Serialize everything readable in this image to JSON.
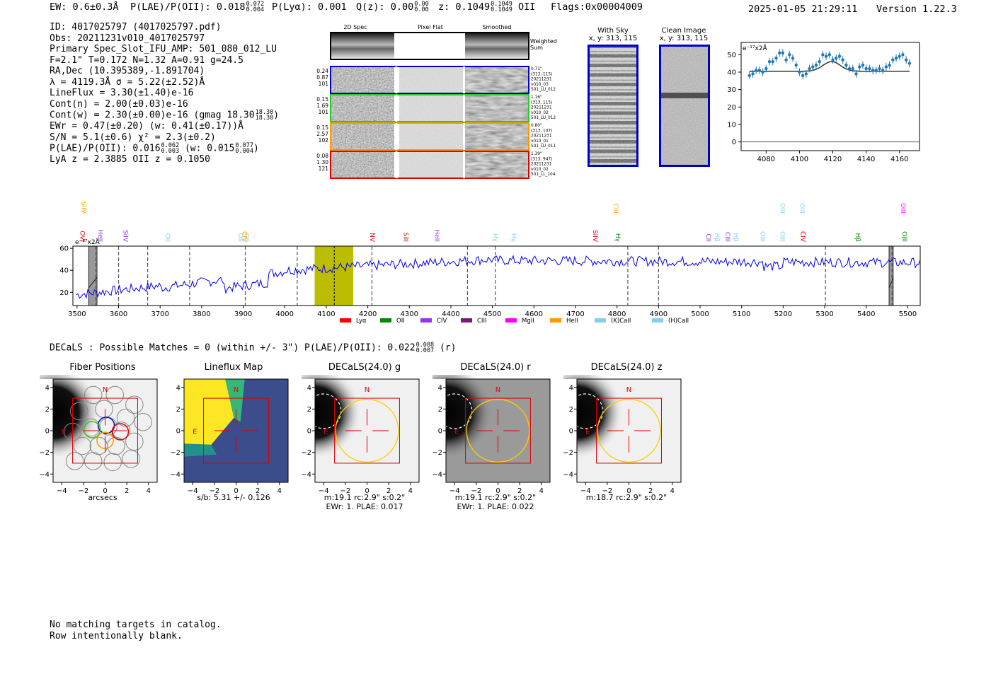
{
  "header": {
    "ew": "EW: 0.6±0.3Å",
    "plae_label": "P(LAE)/P(OII): 0.018",
    "plae_hi": "0.072",
    "plae_lo": "0.004",
    "plya": "P(Lyα): 0.001",
    "qz_label": "Q(z): 0.00",
    "qz_hi": "0.00",
    "qz_lo": "0.00",
    "z_label": "z: 0.1049",
    "z_hi": "0.1049",
    "z_lo": "0.1049",
    "z_line": "OII",
    "flags": "Flags:0x00004009",
    "timestamp": "2025-01-05 21:29:11",
    "version": "Version 1.22.3"
  },
  "info": {
    "id": "ID: 4017025797 (4017025797.pdf)",
    "obs": "Obs: 20211231v010_4017025797",
    "primary": "Primary Spec_Slot_IFU_AMP: 501_080_012_LU",
    "params": "F=2.1\"  T=0.172  N=1.32  A=0.91  g=24.5",
    "radec": "RA,Dec (10.395389,-1.891704)",
    "lambda": "λ = 4119.3Å   σ = 5.22(±2.52)Å",
    "lineflux": "LineFlux = 3.30(±1.40)e-16",
    "cont_n": "Cont(n) = 2.00(±0.03)e-16",
    "cont_w": "Cont(w) = 2.30(±0.00)e-16 (gmag 18.30",
    "cont_w_hi": "18.30",
    "cont_w_lo": "18.30",
    "cont_w_end": ")",
    "ewr": "EWr = 0.47(±0.20) (w: 0.41(±0.17))Å",
    "sn": "S/N = 5.1(±0.6)  χ² = 2.3(±0.2)",
    "plae": "P(LAE)/P(OII): 0.016",
    "plae_hi": "0.062",
    "plae_lo": "0.003",
    "plae_w": " (w: 0.015",
    "plae_w_hi": "0.077",
    "plae_w_lo": "0.004",
    "plae_w_end": ")",
    "z": "LyA z = 2.3885   OII z = 0.1050"
  },
  "spec2d": {
    "col_titles": [
      "2D Spec",
      "Pixel Flat",
      "Smoothed"
    ],
    "weighted_sum": [
      "Weighted",
      "Sum"
    ],
    "rows": [
      {
        "left": [
          "0.24",
          "0.87",
          "101"
        ],
        "right": [
          "0.71\"",
          "(313, 115)",
          "20211231",
          "v010_03",
          "501_LU_012"
        ],
        "color": "#0000cc"
      },
      {
        "left": [
          "0.15",
          "1.69",
          "101"
        ],
        "right": [
          "1.16\"",
          "(313, 115)",
          "20211231",
          "v010_02",
          "501_LU_012"
        ],
        "color": "#22cc22"
      },
      {
        "left": [
          "0.15",
          "2.57",
          "102"
        ],
        "right": [
          "0.80\"",
          "(313, 107)",
          "20211231",
          "v010_01",
          "501_LU_011"
        ],
        "color": "#ff9900"
      },
      {
        "left": [
          "0.08",
          "1.30",
          "121"
        ],
        "right": [
          "1.39\"",
          "(313, 947)",
          "20211231",
          "v010_02",
          "501_LL_104"
        ],
        "color": "#dd0000"
      }
    ]
  },
  "stamps": {
    "with_sky": "With Sky",
    "with_sky_xy": "x, y: 313, 115",
    "clean": "Clean Image",
    "clean_xy": "x, y: 313, 115"
  },
  "zoom_chart": {
    "type": "line",
    "unit": "e⁻¹⁷x2Å",
    "xlim": [
      4065,
      4172
    ],
    "ylim": [
      -5,
      57
    ],
    "xticks": [
      4080,
      4100,
      4120,
      4140,
      4160
    ],
    "yticks": [
      0,
      10,
      20,
      30,
      40,
      50
    ],
    "data_x": [
      4070,
      4072,
      4074,
      4076,
      4078,
      4080,
      4082,
      4084,
      4086,
      4088,
      4090,
      4092,
      4094,
      4096,
      4098,
      4100,
      4102,
      4104,
      4106,
      4108,
      4110,
      4112,
      4114,
      4116,
      4118,
      4120,
      4122,
      4124,
      4126,
      4128,
      4130,
      4132,
      4134,
      4136,
      4138,
      4140,
      4142,
      4144,
      4146,
      4148,
      4150,
      4152,
      4154,
      4156,
      4158,
      4160,
      4162,
      4164,
      4166
    ],
    "data_y": [
      38,
      39,
      41,
      41,
      40,
      42,
      46,
      46,
      48,
      51,
      51,
      47,
      50,
      48,
      44,
      40,
      38,
      39,
      42,
      43,
      44,
      46,
      50,
      49,
      50,
      47,
      48,
      49,
      47,
      44,
      42,
      42,
      39,
      43,
      44,
      42,
      42,
      41,
      41,
      42,
      41,
      43,
      44,
      47,
      48,
      49,
      50,
      47,
      45
    ],
    "fit": {
      "continuum": 40.5,
      "amplitude": 5.5,
      "center": 4119.3,
      "sigma": 5.22,
      "x_range": [
        4070,
        4166
      ]
    }
  },
  "main_spectrum": {
    "type": "line",
    "unit": "e⁻¹⁷x2Å",
    "xlim": [
      3490,
      5530
    ],
    "ylim": [
      8,
      62
    ],
    "xticks": [
      3500,
      3600,
      3700,
      3800,
      3900,
      4000,
      4100,
      4200,
      4300,
      4400,
      4500,
      4600,
      4700,
      4800,
      4900,
      5000,
      5100,
      5200,
      5300,
      5400,
      5500
    ],
    "yticks": [
      20,
      40,
      60
    ],
    "highlight": [
      4072,
      4165
    ],
    "line_center": 4119.3,
    "masks": [
      [
        3528,
        3548
      ],
      [
        5455,
        5465
      ]
    ],
    "dashed_lines": [
      3545,
      3600,
      3670,
      3771,
      3905,
      4030,
      4210,
      4440,
      4507,
      4826,
      4900,
      5302,
      5462
    ],
    "labels": [
      {
        "text": "OVI",
        "wl": 3508,
        "color": "#dd0000",
        "tier": "low"
      },
      {
        "text": "SiIV",
        "wl": 3511,
        "color": "#ff9900",
        "tier": "high"
      },
      {
        "text": "HeII",
        "wl": 3551,
        "color": "#9933ee",
        "tier": "low"
      },
      {
        "text": "SiIV",
        "wl": 3612,
        "color": "#9933ee",
        "tier": "low"
      },
      {
        "text": "OII",
        "wl": 3713,
        "color": "#87ceeb",
        "tier": "low"
      },
      {
        "text": "OII",
        "wl": 3889,
        "color": "#87ceeb",
        "tier": "low"
      },
      {
        "text": "CIV",
        "wl": 3898,
        "color": "#ff9900",
        "tier": "low"
      },
      {
        "text": "OII",
        "wl": 3903,
        "color": "#87ceeb",
        "tier": "low"
      },
      {
        "text": "NV",
        "wl": 4206,
        "color": "#dd0000",
        "tier": "low"
      },
      {
        "text": "SiII",
        "wl": 4287,
        "color": "#dd0000",
        "tier": "low"
      },
      {
        "text": "HeII",
        "wl": 4362,
        "color": "#9933ee",
        "tier": "low"
      },
      {
        "text": "Hγ",
        "wl": 4502,
        "color": "#87ceeb",
        "tier": "low"
      },
      {
        "text": "Hγ",
        "wl": 4547,
        "color": "#87ceeb",
        "tier": "low"
      },
      {
        "text": "SiIV",
        "wl": 4743,
        "color": "#dd0000",
        "tier": "low"
      },
      {
        "text": "CIII",
        "wl": 4792,
        "color": "#ff9900",
        "tier": "high"
      },
      {
        "text": "Hγ",
        "wl": 4797,
        "color": "#008800",
        "tier": "low"
      },
      {
        "text": "CII",
        "wl": 5015,
        "color": "#9933ee",
        "tier": "low"
      },
      {
        "text": "Hβ",
        "wl": 5036,
        "color": "#87ceeb",
        "tier": "low"
      },
      {
        "text": "CIII",
        "wl": 5061,
        "color": "#9933ee",
        "tier": "low"
      },
      {
        "text": "Hβ",
        "wl": 5081,
        "color": "#87ceeb",
        "tier": "low"
      },
      {
        "text": "OIII",
        "wl": 5146,
        "color": "#87ceeb",
        "tier": "low"
      },
      {
        "text": "OIII",
        "wl": 5193,
        "color": "#87ceeb",
        "tier": "low"
      },
      {
        "text": "OIII",
        "wl": 5193,
        "color": "#87ceeb",
        "tier": "high"
      },
      {
        "text": "OIII",
        "wl": 5241,
        "color": "#87ceeb",
        "tier": "high"
      },
      {
        "text": "CIV",
        "wl": 5243,
        "color": "#dd0000",
        "tier": "low"
      },
      {
        "text": "Hβ",
        "wl": 5375,
        "color": "#008800",
        "tier": "low"
      },
      {
        "text": "OIII",
        "wl": 5484,
        "color": "#ff00ff",
        "tier": "high"
      },
      {
        "text": "OIII",
        "wl": 5487,
        "color": "#008800",
        "tier": "low"
      }
    ],
    "legend": [
      {
        "label": "Lyα",
        "color": "#ff0000"
      },
      {
        "label": "OII",
        "color": "#008800"
      },
      {
        "label": "CIV",
        "color": "#9933ee"
      },
      {
        "label": "CIII",
        "color": "#7a1a7a"
      },
      {
        "label": "MgII",
        "color": "#ff00ff"
      },
      {
        "label": "HeII",
        "color": "#ff9900"
      },
      {
        "label": "(K)CaII",
        "color": "#87ceeb"
      },
      {
        "label": "(H)CaII",
        "color": "#87ceeb"
      }
    ]
  },
  "decals": {
    "title": "DECaLS : Possible Matches = 0 (within +/- 3\")  P(LAE)/P(OII): 0.022",
    "plae_hi": "0.088",
    "plae_lo": "0.007",
    "band": "(r)",
    "panels": [
      {
        "title": "Fiber Positions",
        "caption": [
          "arcsecs"
        ]
      },
      {
        "title": "Lineflux Map",
        "caption": [
          "s/b: 5.31 +/- 0.126"
        ]
      },
      {
        "title": "DECaLS(24.0) g",
        "caption": [
          "m:19.1 rc:2.9\"  s:0.2\"",
          "EWr: 1. PLAE: 0.017"
        ]
      },
      {
        "title": "DECaLS(24.0) r",
        "caption": [
          "m:19.1 rc:2.9\"  s:0.2\"",
          "EWr: 1. PLAE: 0.022"
        ]
      },
      {
        "title": "DECaLS(24.0) z",
        "caption": [
          "m:18.7 rc:2.9\"  s:0.2\""
        ]
      }
    ],
    "ticks": [
      "−4",
      "−2",
      "0",
      "2",
      "4"
    ],
    "north": "N",
    "east": "E"
  },
  "footer": {
    "line1": "No matching targets in catalog.",
    "line2": "Row intentionally blank."
  }
}
